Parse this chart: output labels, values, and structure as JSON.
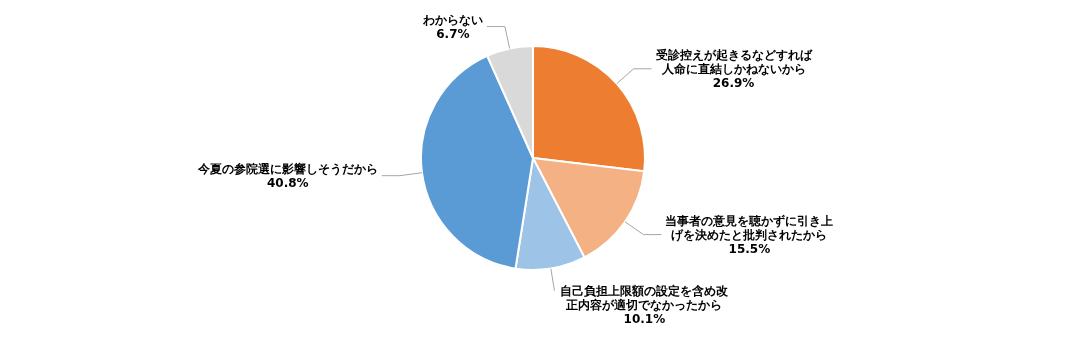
{
  "chart_data": {
    "type": "pie",
    "categories": [
      "受診控えが起きるなどすれば人命に直結しかねないから",
      "当事者の意見を聴かずに引き上げを決めたと批判されたから",
      "自己負担上限額の設定を含め改正内容が適切でなかったから",
      "今夏の参院選に影響しそうだから",
      "わからない"
    ],
    "values": [
      26.9,
      15.5,
      10.1,
      40.8,
      6.7
    ],
    "colors": [
      "#ed7d31",
      "#f4b183",
      "#9dc3e6",
      "#5b9bd5",
      "#d9d9d9"
    ],
    "value_labels": [
      "26.9%",
      "15.5%",
      "10.1%",
      "40.8%",
      "6.7%"
    ],
    "legend": false
  }
}
